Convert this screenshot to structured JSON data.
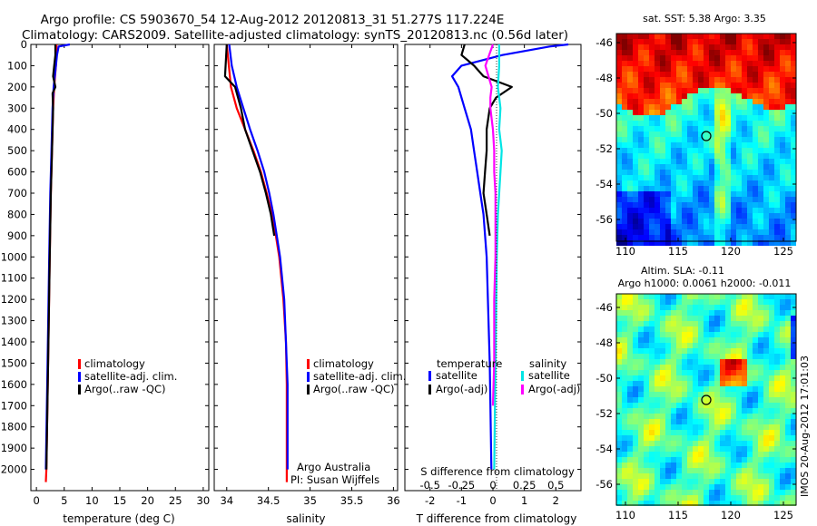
{
  "header": {
    "title_line1": "Argo profile: CS 5903670_54 12-Aug-2012 20120813_31 51.277S 117.224E",
    "title_line2": "Climatology: CARS2009. Satellite-adjusted climatology: synTS_20120813.nc (0.56d later)"
  },
  "colors": {
    "climatology": "#ff0000",
    "satellite": "#0000ff",
    "argo": "#000000",
    "sal_satellite": "#00e5e5",
    "sal_argo": "#ff00ff",
    "marker": "#000000"
  },
  "panels": {
    "temperature": {
      "xlabel": "temperature (deg C)",
      "legend": [
        "climatology",
        "satellite-adj. clim.",
        "Argo(..raw -QC)"
      ]
    },
    "salinity": {
      "xlabel": "salinity",
      "legend": [
        "climatology",
        "satellite-adj. clim.",
        "Argo(..raw -QC)"
      ],
      "credit1": "Argo Australia",
      "credit2": "PI: Susan Wijffels"
    },
    "difference": {
      "legend_temp_title": "temperature",
      "legend_sal_title": "salinity",
      "legend_temp": [
        "satellite",
        "Argo(-adj)"
      ],
      "legend_sal": [
        "satellite",
        "Argo(-adj)"
      ],
      "top_axis_label": "S difference from climatology",
      "bottom_axis_label": "T difference from climatology"
    },
    "sst_map": {
      "title": "sat. SST: 5.38 Argo: 3.35",
      "lat_ticks": [
        "-46",
        "-48",
        "-50",
        "-52",
        "-54",
        "-56"
      ],
      "lon_ticks": [
        "110",
        "115",
        "120",
        "125"
      ]
    },
    "sla_map": {
      "title1": "Altim. SLA: -0.11",
      "title2": "Argo h1000: 0.0061 h2000: -0.011",
      "lat_ticks": [
        "-46",
        "-48",
        "-50",
        "-52",
        "-54",
        "-56"
      ],
      "lon_ticks": [
        "110",
        "115",
        "120",
        "125"
      ],
      "side_label": "IMOS 20-Aug-2012 17:01:03"
    }
  },
  "chart_data": [
    {
      "type": "line",
      "title": "",
      "xlabel": "temperature (deg C)",
      "ylabel": "",
      "xlim": [
        -1,
        31
      ],
      "ylim": [
        2100,
        0
      ],
      "xticks": [
        0,
        5,
        10,
        15,
        20,
        25,
        30
      ],
      "yticks": [
        0,
        100,
        200,
        300,
        400,
        500,
        600,
        700,
        800,
        900,
        1000,
        1100,
        1200,
        1300,
        1400,
        1500,
        1600,
        1700,
        1800,
        1900,
        2000
      ],
      "series": [
        {
          "name": "climatology",
          "depth": [
            0,
            50,
            100,
            200,
            300,
            500,
            700,
            1000,
            1500,
            2000,
            2060
          ],
          "values": [
            3.6,
            3.6,
            3.5,
            3.2,
            3.0,
            2.8,
            2.6,
            2.4,
            2.1,
            1.8,
            1.7
          ]
        },
        {
          "name": "satellite-adj. clim.",
          "depth": [
            0,
            10,
            50,
            100,
            200,
            300,
            500,
            700,
            1000,
            1500,
            2000
          ],
          "values": [
            6.0,
            4.0,
            3.7,
            3.5,
            3.1,
            2.9,
            2.7,
            2.5,
            2.3,
            2.0,
            1.7
          ]
        },
        {
          "name": "Argo(..raw -QC)",
          "depth": [
            0,
            50,
            100,
            150,
            200,
            230,
            300,
            500,
            700,
            1000,
            1500,
            2000
          ],
          "values": [
            3.4,
            3.4,
            3.2,
            3.0,
            3.4,
            2.9,
            3.0,
            2.8,
            2.6,
            2.4,
            2.1,
            1.8
          ]
        }
      ]
    },
    {
      "type": "line",
      "title": "",
      "xlabel": "salinity",
      "ylabel": "",
      "xlim": [
        33.85,
        36.05
      ],
      "ylim": [
        2100,
        0
      ],
      "xticks": [
        34,
        34.5,
        35,
        35.5,
        36
      ],
      "series": [
        {
          "name": "climatology",
          "depth": [
            0,
            200,
            300,
            400,
            500,
            600,
            700,
            800,
            900,
            1000,
            1200,
            1400,
            1600,
            2060
          ],
          "values": [
            34.0,
            34.05,
            34.12,
            34.22,
            34.32,
            34.41,
            34.48,
            34.54,
            34.59,
            34.63,
            34.68,
            34.71,
            34.72,
            34.72
          ]
        },
        {
          "name": "satellite-adj. clim.",
          "depth": [
            0,
            100,
            200,
            300,
            400,
            500,
            600,
            700,
            800,
            900,
            1000,
            1200,
            1400,
            1600,
            2000
          ],
          "values": [
            34.03,
            34.06,
            34.12,
            34.2,
            34.28,
            34.37,
            34.45,
            34.51,
            34.56,
            34.6,
            34.64,
            34.69,
            34.71,
            34.73,
            34.73
          ]
        },
        {
          "name": "Argo(..raw -QC)",
          "depth": [
            0,
            150,
            200,
            300,
            400,
            500,
            600,
            700,
            800,
            900
          ],
          "values": [
            34.0,
            33.98,
            34.1,
            34.17,
            34.22,
            34.31,
            34.4,
            34.47,
            34.53,
            34.57
          ]
        }
      ]
    },
    {
      "type": "line",
      "title": "",
      "xlabel": "T difference from climatology",
      "x2label": "S difference from climatology",
      "xlim": [
        -2.8,
        2.8
      ],
      "xticks": [
        -2,
        -1,
        0,
        1,
        2
      ],
      "x2ticks": [
        "-0.5",
        "-0.25",
        "0",
        "0.25",
        "0.5"
      ],
      "ylim": [
        2100,
        0
      ],
      "series": [
        {
          "name": "temperature satellite",
          "depth": [
            0,
            10,
            50,
            100,
            150,
            200,
            300,
            400,
            500,
            600,
            700,
            800,
            1000,
            1500,
            2000
          ],
          "values": [
            2.4,
            1.8,
            0.3,
            -1.0,
            -1.3,
            -1.1,
            -0.9,
            -0.7,
            -0.6,
            -0.5,
            -0.4,
            -0.3,
            -0.2,
            -0.1,
            -0.05
          ]
        },
        {
          "name": "temperature Argo(-adj)",
          "depth": [
            0,
            50,
            100,
            150,
            200,
            250,
            300,
            400,
            500,
            600,
            700,
            800,
            900
          ],
          "values": [
            -0.9,
            -1.0,
            -0.6,
            -0.3,
            0.6,
            0.1,
            -0.1,
            -0.2,
            -0.2,
            -0.25,
            -0.3,
            -0.2,
            -0.1
          ]
        },
        {
          "name": "salinity satellite",
          "depth": [
            0,
            100,
            200,
            300,
            400,
            500,
            600,
            700,
            800,
            1000,
            1500,
            2000
          ],
          "values": [
            0.05,
            0.05,
            0.04,
            0.06,
            0.05,
            0.07,
            0.06,
            0.05,
            0.04,
            0.03,
            0.02,
            0.01
          ]
        },
        {
          "name": "salinity Argo(-adj)",
          "depth": [
            0,
            100,
            200,
            250,
            300,
            400,
            500,
            600,
            700,
            800,
            1000,
            1200,
            1500,
            1700
          ],
          "values": [
            0.0,
            -0.06,
            -0.01,
            -0.02,
            -0.02,
            0.0,
            0.01,
            0.01,
            0.02,
            0.02,
            0.02,
            0.01,
            0.01,
            0.0
          ]
        }
      ]
    },
    {
      "type": "heatmap",
      "title": "sat. SST: 5.38 Argo: 3.35",
      "xlim": [
        108.5,
        125.5
      ],
      "ylim": [
        -57.3,
        -45.5
      ],
      "argo_position": {
        "lon": 117.224,
        "lat": -51.277
      }
    },
    {
      "type": "heatmap",
      "title": "Altim. SLA: -0.11",
      "xlim": [
        108.5,
        125.5
      ],
      "ylim": [
        -57.3,
        -45.5
      ],
      "argo_position": {
        "lon": 117.224,
        "lat": -51.277
      }
    }
  ]
}
